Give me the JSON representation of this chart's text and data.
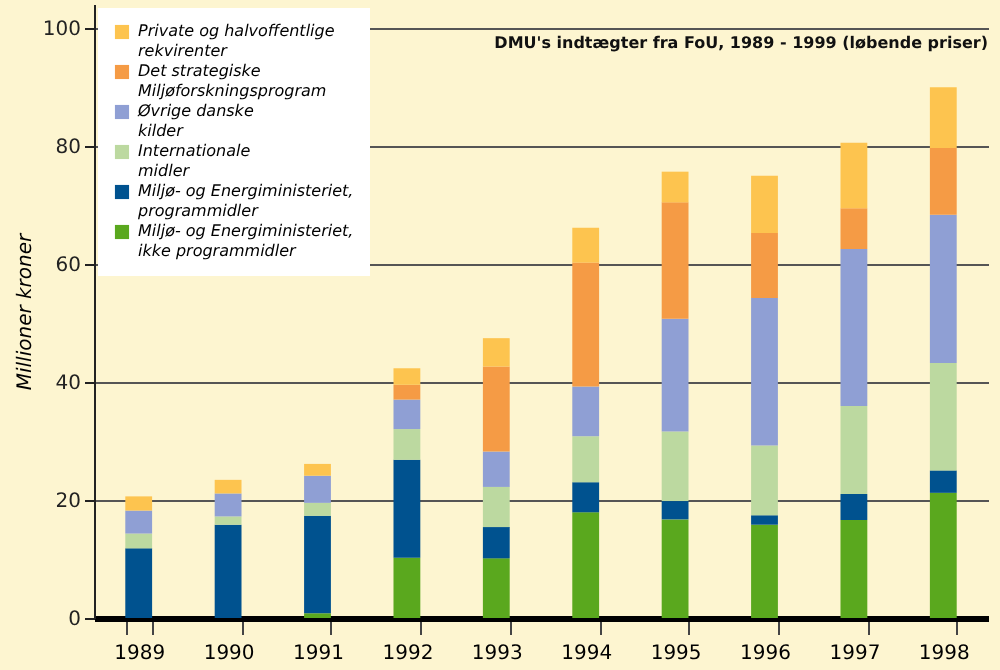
{
  "chart_data": {
    "type": "bar",
    "title": "DMU's indtægter fra FoU, 1989 - 1999 (løbende priser)",
    "ylabel": "Millioner kroner",
    "categories": [
      "1989",
      "1990",
      "1991",
      "1992",
      "1993",
      "1994",
      "1995",
      "1996",
      "1997",
      "1998"
    ],
    "stacked": true,
    "ylim": [
      0,
      104
    ],
    "yticks": [
      0,
      20,
      40,
      60,
      80,
      100
    ],
    "grid": "y",
    "legend": "top left",
    "series": [
      {
        "name": "Miljø- og Energiministeriet, ikke programmidler",
        "color": "#5aa81e",
        "values": [
          0,
          0,
          0.8,
          10.2,
          10.1,
          17.9,
          16.7,
          15.8,
          16.6,
          21.2
        ]
      },
      {
        "name": "Miljø- og Energiministeriet, programmidler",
        "color": "#00528f",
        "values": [
          11.8,
          15.8,
          16.5,
          16.6,
          5.3,
          5.1,
          3.1,
          1.6,
          4.4,
          3.8
        ]
      },
      {
        "name": "Internationale midler",
        "color": "#bcd9a0",
        "values": [
          2.5,
          1.4,
          2.2,
          5.2,
          6.8,
          7.8,
          11.8,
          11.8,
          14.9,
          18.2
        ]
      },
      {
        "name": "Øvrige danske kilder",
        "color": "#8f9fd4",
        "values": [
          3.9,
          3.9,
          4.6,
          5.0,
          6.0,
          8.4,
          19.1,
          25.0,
          26.6,
          25.1
        ]
      },
      {
        "name": "Det strategiske Miljøforskningsprogram",
        "color": "#f59b45",
        "values": [
          0,
          0,
          0,
          2.5,
          14.4,
          21.0,
          19.7,
          11.0,
          6.9,
          11.3
        ]
      },
      {
        "name": "Private og halvoffentlige rekvirenter",
        "color": "#fdc44f",
        "values": [
          2.4,
          2.3,
          2.0,
          2.8,
          4.8,
          5.9,
          5.2,
          9.7,
          11.1,
          10.3
        ]
      }
    ]
  }
}
